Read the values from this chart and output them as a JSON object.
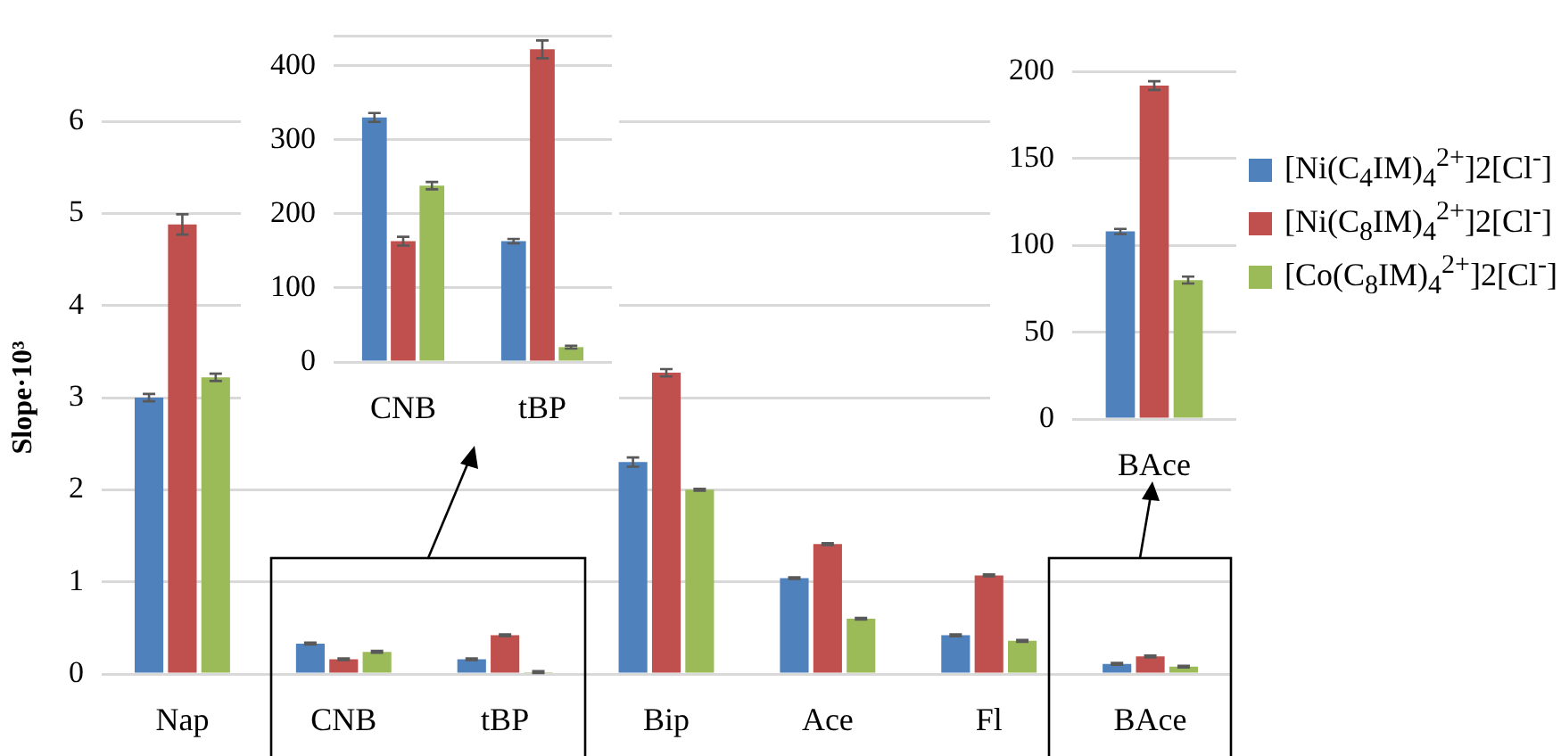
{
  "chart_data": [
    {
      "type": "bar",
      "ylabel": "Slope·10³",
      "categories": [
        "Nap",
        "CNB",
        "tBP",
        "Bip",
        "Ace",
        "Fl",
        "BAce"
      ],
      "series": [
        {
          "name": "[Ni(C$_{4}$IM)$_{4}$$^{2+}$]2[Cl$^{-}$]",
          "color": "#4f81bd",
          "values": [
            3.0,
            0.33,
            0.16,
            2.3,
            1.04,
            0.42,
            0.11
          ],
          "errors": [
            0.04,
            0.01,
            0.01,
            0.05,
            0.01,
            0.01,
            0.01
          ]
        },
        {
          "name": "[Ni(C$_{8}$IM)$_{4}$$^{2+}$]2[Cl$^{-}$]",
          "color": "#c0504d",
          "values": [
            4.88,
            0.16,
            0.42,
            3.27,
            1.41,
            1.07,
            0.19
          ],
          "errors": [
            0.11,
            0.01,
            0.01,
            0.04,
            0.01,
            0.01,
            0.01
          ]
        },
        {
          "name": "[Co(C$_{8}$IM)$_{4}$$^{2+}$]2[Cl$^{-}$]",
          "color": "#9bbb59",
          "values": [
            3.22,
            0.24,
            0.02,
            2.0,
            0.6,
            0.36,
            0.08
          ],
          "errors": [
            0.04,
            0.01,
            0.01,
            0.01,
            0.01,
            0.01,
            0.01
          ]
        }
      ],
      "ylim": [
        0,
        6
      ],
      "yticks": [
        0,
        1,
        2,
        3,
        4,
        5,
        6
      ],
      "grid": "y",
      "legend": "right"
    },
    {
      "type": "bar",
      "categories": [
        "CNB",
        "tBP"
      ],
      "series": [
        {
          "color": "#4f81bd",
          "values": [
            330,
            163
          ],
          "errors": [
            6,
            3
          ]
        },
        {
          "color": "#c0504d",
          "values": [
            163,
            422
          ],
          "errors": [
            6,
            12
          ]
        },
        {
          "color": "#9bbb59",
          "values": [
            238,
            20
          ],
          "errors": [
            5,
            2
          ]
        }
      ],
      "ylim": [
        0,
        440
      ],
      "yticks": [
        0,
        100,
        200,
        300,
        400,
        {
          "value": 440,
          "label": null
        }
      ],
      "grid": "y"
    },
    {
      "type": "bar",
      "categories": [
        "BAce"
      ],
      "series": [
        {
          "color": "#4f81bd",
          "values": [
            108
          ],
          "errors": [
            1.5
          ]
        },
        {
          "color": "#c0504d",
          "values": [
            192
          ],
          "errors": [
            2.5
          ]
        },
        {
          "color": "#9bbb59",
          "values": [
            80
          ],
          "errors": [
            2
          ]
        }
      ],
      "ylim": [
        0,
        200
      ],
      "yticks": [
        0,
        50,
        100,
        150,
        200
      ],
      "grid": "y"
    }
  ]
}
